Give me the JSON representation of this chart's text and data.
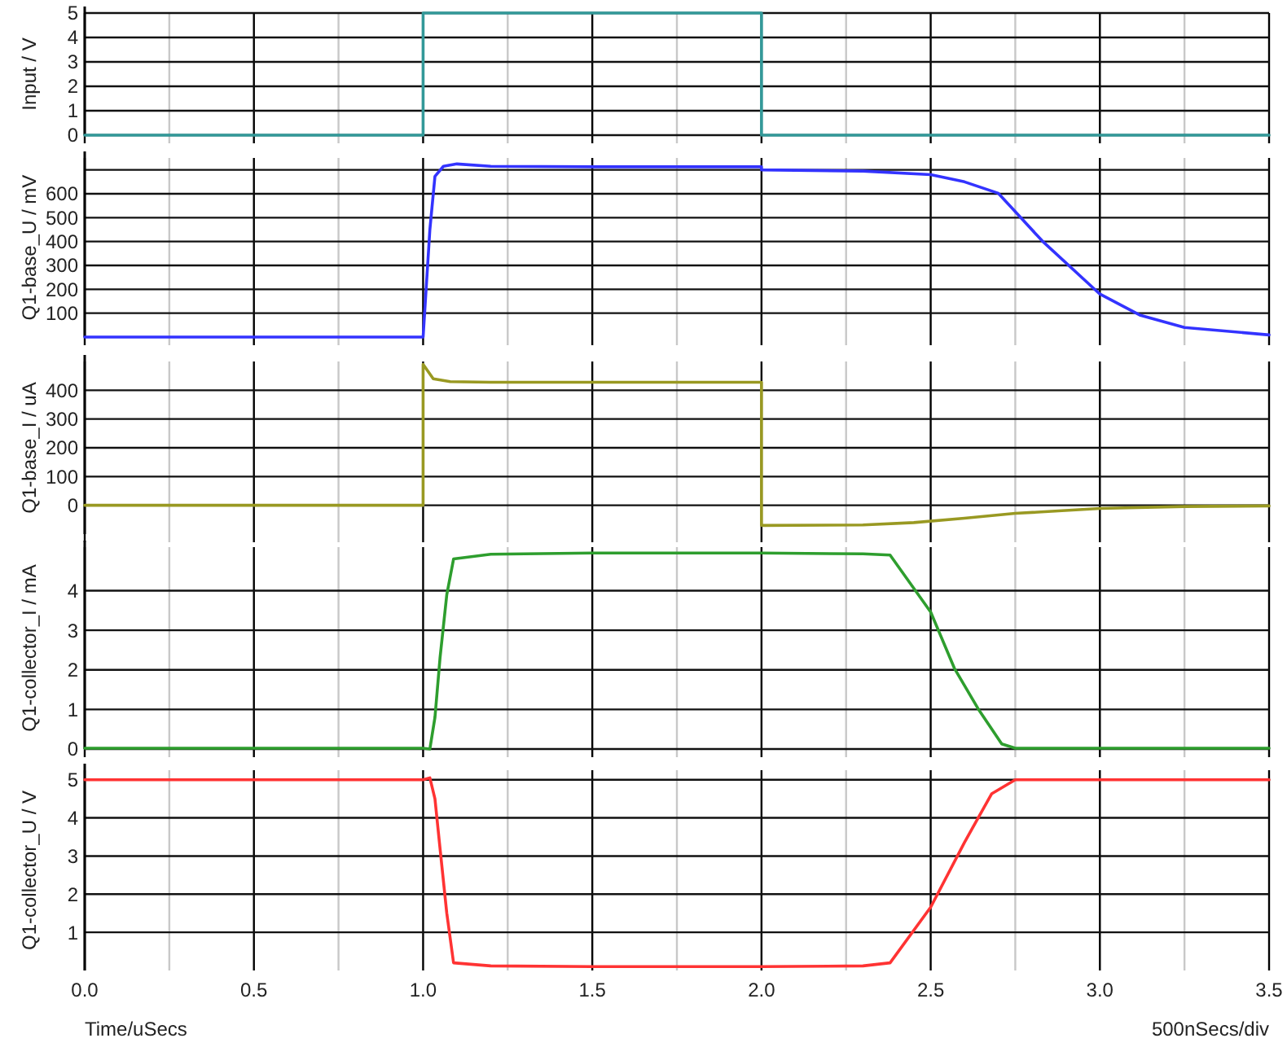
{
  "chart_data": [
    {
      "type": "line",
      "ylabel": "Input / V",
      "xlim": [
        0,
        3.5
      ],
      "ylim": [
        0,
        5
      ],
      "yticks": [
        0,
        1,
        2,
        3,
        4,
        5
      ],
      "tick_labels": "y",
      "grid": true,
      "line_style": "solid",
      "marker": "none",
      "series": [
        {
          "color": "#339999",
          "x": [
            0,
            1,
            1,
            2,
            2,
            3.5
          ],
          "values": [
            0,
            0,
            5,
            5,
            0,
            0
          ]
        }
      ]
    },
    {
      "type": "line",
      "ylabel": "Q1-base_U / mV",
      "xlim": [
        0,
        3.5
      ],
      "ylim": [
        0,
        750
      ],
      "yticks": [
        {
          "value": 100,
          "label": "100"
        },
        {
          "value": 200,
          "label": "200"
        },
        {
          "value": 300,
          "label": "300"
        },
        {
          "value": 400,
          "label": "400"
        },
        {
          "value": 500,
          "label": "500"
        },
        {
          "value": 600,
          "label": "600"
        },
        {
          "value": 700,
          "label": null
        }
      ],
      "tick_labels": "y",
      "grid": true,
      "line_style": "solid",
      "marker": "none",
      "series": [
        {
          "color": "#3333ff",
          "x": [
            0,
            1,
            1.02,
            1.035,
            1.06,
            1.1,
            1.2,
            1.5,
            2,
            2,
            2.3,
            2.5,
            2.6,
            2.7,
            2.83,
            3,
            3.12,
            3.25,
            3.5
          ],
          "values": [
            0,
            0,
            450,
            673,
            715,
            725,
            715,
            713,
            713,
            700,
            695,
            680,
            650,
            602,
            402,
            180,
            91,
            40,
            9
          ]
        }
      ]
    },
    {
      "type": "line",
      "ylabel": "Q1-base_I / uA",
      "xlim": [
        0,
        3.5
      ],
      "ylim": [
        -100,
        500
      ],
      "yticks": [
        0,
        100,
        200,
        300,
        400
      ],
      "tick_labels": "y",
      "grid": true,
      "line_style": "solid",
      "marker": "none",
      "series": [
        {
          "color": "#999922",
          "x": [
            0,
            1,
            1,
            1.03,
            1.08,
            1.2,
            2,
            2,
            2.3,
            2.45,
            2.6,
            2.75,
            3,
            3.25,
            3.5
          ],
          "values": [
            0,
            0,
            490,
            440,
            430,
            428,
            428,
            -70,
            -68,
            -60,
            -45,
            -28,
            -11,
            -4,
            -2
          ]
        }
      ]
    },
    {
      "type": "line",
      "ylabel": "Q1-collector_I / mA",
      "xlim": [
        0,
        3.5
      ],
      "ylim": [
        0,
        5.1
      ],
      "yticks": [
        0,
        1,
        2,
        3,
        4
      ],
      "tick_labels": "y",
      "grid": true,
      "line_style": "solid",
      "marker": "none",
      "series": [
        {
          "color": "#2e9e2e",
          "x": [
            0,
            1,
            1.02,
            1.035,
            1.05,
            1.07,
            1.09,
            1.2,
            1.5,
            2,
            2.3,
            2.38,
            2.5,
            2.57,
            2.64,
            2.71,
            2.75,
            3,
            3.5
          ],
          "values": [
            0.02,
            0.02,
            0,
            0.8,
            2.3,
            3.9,
            4.8,
            4.92,
            4.95,
            4.95,
            4.93,
            4.9,
            3.46,
            2.04,
            1.02,
            0.13,
            0.02,
            0.02,
            0.02
          ]
        }
      ]
    },
    {
      "type": "line",
      "ylabel": "Q1-collector_U / V",
      "xlabel": "Time/uSecs",
      "annotations": [
        "500nSecs/div"
      ],
      "xlim": [
        0,
        3.5
      ],
      "ylim": [
        0,
        5.25
      ],
      "yticks": [
        1,
        2,
        3,
        4,
        5
      ],
      "xticks": [
        {
          "value": 0,
          "label": "0.0"
        },
        {
          "value": 0.25,
          "label": null
        },
        {
          "value": 0.5,
          "label": "0.5"
        },
        {
          "value": 0.75,
          "label": null
        },
        {
          "value": 1,
          "label": "1.0"
        },
        {
          "value": 1.25,
          "label": null
        },
        {
          "value": 1.5,
          "label": "1.5"
        },
        {
          "value": 1.75,
          "label": null
        },
        {
          "value": 2,
          "label": "2.0"
        },
        {
          "value": 2.25,
          "label": null
        },
        {
          "value": 2.5,
          "label": "2.5"
        },
        {
          "value": 2.75,
          "label": null
        },
        {
          "value": 3,
          "label": "3.0"
        },
        {
          "value": 3.25,
          "label": null
        },
        {
          "value": 3.5,
          "label": "3.5"
        }
      ],
      "grid": true,
      "line_style": "solid",
      "marker": "none",
      "series": [
        {
          "color": "#ff3333",
          "x": [
            0,
            1,
            1.02,
            1.035,
            1.05,
            1.07,
            1.09,
            1.2,
            1.5,
            2,
            2.3,
            2.38,
            2.5,
            2.6,
            2.68,
            2.75,
            3,
            3.5
          ],
          "values": [
            5,
            5,
            5.05,
            4.5,
            3.2,
            1.5,
            0.2,
            0.12,
            0.1,
            0.1,
            0.12,
            0.2,
            1.66,
            3.36,
            4.63,
            5,
            5,
            5
          ]
        }
      ]
    }
  ]
}
